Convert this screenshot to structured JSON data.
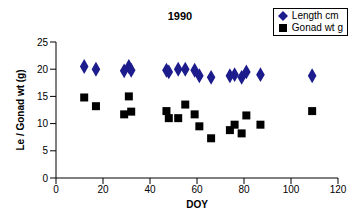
{
  "chart_data": {
    "type": "scatter",
    "title": "1990",
    "x_label": "DOY",
    "y_label": "Le / Gonad wt (g)",
    "x": [
      12,
      17,
      29,
      31,
      32,
      47,
      48,
      52,
      55,
      59,
      61,
      66,
      74,
      76,
      79,
      81,
      87,
      109
    ],
    "series": [
      {
        "name": "Length cm",
        "color": "#1c1c8c",
        "marker": "diamond",
        "values": [
          20.5,
          20,
          19.7,
          20.5,
          19.8,
          19.8,
          19.5,
          20,
          20,
          19.8,
          18.8,
          18.5,
          18.8,
          19,
          18.5,
          19.5,
          19,
          18.8
        ]
      },
      {
        "name": "Gonad wt g",
        "color": "#000000",
        "marker": "square",
        "values": [
          14.8,
          13.2,
          11.7,
          15,
          12.2,
          12.3,
          11,
          11,
          13.5,
          11.7,
          9.5,
          7.3,
          8.8,
          9.8,
          8.2,
          11.5,
          9.8,
          12.3
        ]
      }
    ],
    "xlim": [
      0,
      120
    ],
    "xticks": [
      0,
      20,
      40,
      60,
      80,
      100,
      120
    ],
    "ylim": [
      0,
      25
    ],
    "yticks": [
      0,
      5,
      10,
      15,
      20,
      25
    ],
    "grid": false,
    "legend": "top-right"
  }
}
